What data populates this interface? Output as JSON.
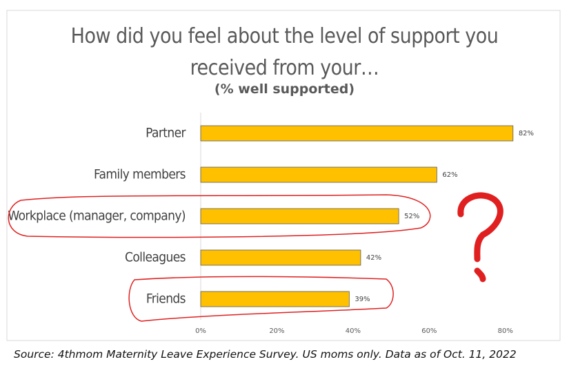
{
  "chart_data": {
    "type": "hbar",
    "title": "How did you feel about the level of support you received from your…",
    "subtitle": "(% well supported)",
    "categories": [
      "Partner",
      "Family members",
      "Workplace (manager, company)",
      "Colleagues",
      "Friends"
    ],
    "values": [
      82,
      62,
      52,
      42,
      39
    ],
    "value_labels": [
      "82%",
      "62%",
      "52%",
      "42%",
      "39%"
    ],
    "color": "#ffc000",
    "xlim": [
      0,
      90
    ],
    "xticks": [
      {
        "value": 0,
        "label": "0%"
      },
      {
        "value": 20,
        "label": "20%"
      },
      {
        "value": 40,
        "label": "40%"
      },
      {
        "value": 60,
        "label": "60%"
      },
      {
        "value": 80,
        "label": "80%"
      }
    ],
    "grid": false,
    "source": "Source: 4thmom Maternity Leave Experience Survey. US moms only. Data as of Oct. 11, 2022"
  }
}
